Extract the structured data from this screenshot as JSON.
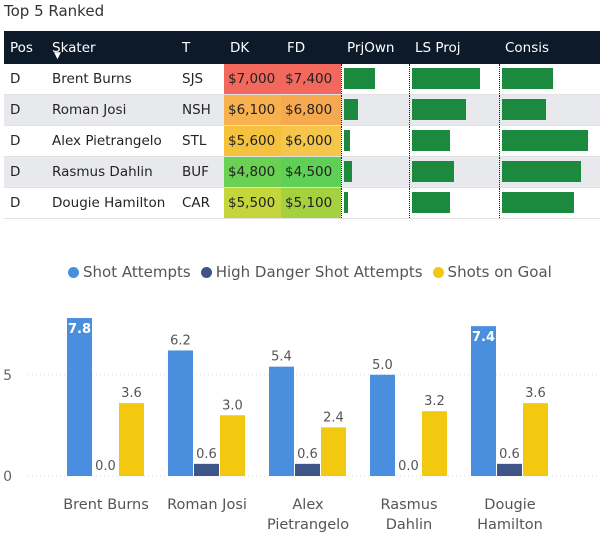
{
  "title": "Top 5 Ranked",
  "table": {
    "columns": [
      "Pos",
      "Skater",
      "T",
      "DK",
      "FD",
      "PrjOwn",
      "LS Proj",
      "Consis"
    ],
    "rows": [
      {
        "pos": "D",
        "skater": "Brent Burns",
        "team": "SJS",
        "dk": "$7,000",
        "fd": "$7,400",
        "dk_color": "#f2685d",
        "fd_color": "#f2685d",
        "prjown": 0.55,
        "lsproj": 0.85,
        "consis": 0.58
      },
      {
        "pos": "D",
        "skater": "Roman Josi",
        "team": "NSH",
        "dk": "$6,100",
        "fd": "$6,800",
        "dk_color": "#f7b14f",
        "fd_color": "#f7a94f",
        "prjown": 0.25,
        "lsproj": 0.68,
        "consis": 0.5
      },
      {
        "pos": "D",
        "skater": "Alex Pietrangelo",
        "team": "STL",
        "dk": "$5,600",
        "fd": "$6,000",
        "dk_color": "#f5c23d",
        "fd_color": "#f6c64a",
        "prjown": 0.1,
        "lsproj": 0.48,
        "consis": 0.98
      },
      {
        "pos": "D",
        "skater": "Rasmus Dahlin",
        "team": "BUF",
        "dk": "$4,800",
        "fd": "$4,500",
        "dk_color": "#6ad153",
        "fd_color": "#5ed055",
        "prjown": 0.14,
        "lsproj": 0.52,
        "consis": 0.9
      },
      {
        "pos": "D",
        "skater": "Dougie Hamilton",
        "team": "CAR",
        "dk": "$5,500",
        "fd": "$5,100",
        "dk_color": "#c4d63b",
        "fd_color": "#a5d140",
        "prjown": 0.07,
        "lsproj": 0.47,
        "consis": 0.82
      }
    ]
  },
  "chart_data": {
    "type": "bar",
    "categories": [
      "Brent Burns",
      "Roman Josi",
      "Alex Pietrangelo",
      "Rasmus Dahlin",
      "Dougie Hamilton"
    ],
    "category_lines": [
      [
        "Brent Burns"
      ],
      [
        "Roman Josi"
      ],
      [
        "Alex",
        "Pietrangelo"
      ],
      [
        "Rasmus",
        "Dahlin"
      ],
      [
        "Dougie",
        "Hamilton"
      ]
    ],
    "series": [
      {
        "name": "Shot Attempts",
        "color": "#4a8fde",
        "values": [
          7.8,
          6.2,
          5.4,
          5.0,
          7.4
        ]
      },
      {
        "name": "High Danger Shot Attempts",
        "color": "#3e5588",
        "values": [
          0.0,
          0.6,
          0.6,
          0.0,
          0.6
        ]
      },
      {
        "name": "Shots on Goal",
        "color": "#f2c811",
        "values": [
          3.6,
          3.0,
          2.4,
          3.2,
          3.6
        ]
      }
    ],
    "yticks": [
      0,
      5
    ],
    "ylim": [
      0,
      8
    ],
    "legend": "top"
  }
}
